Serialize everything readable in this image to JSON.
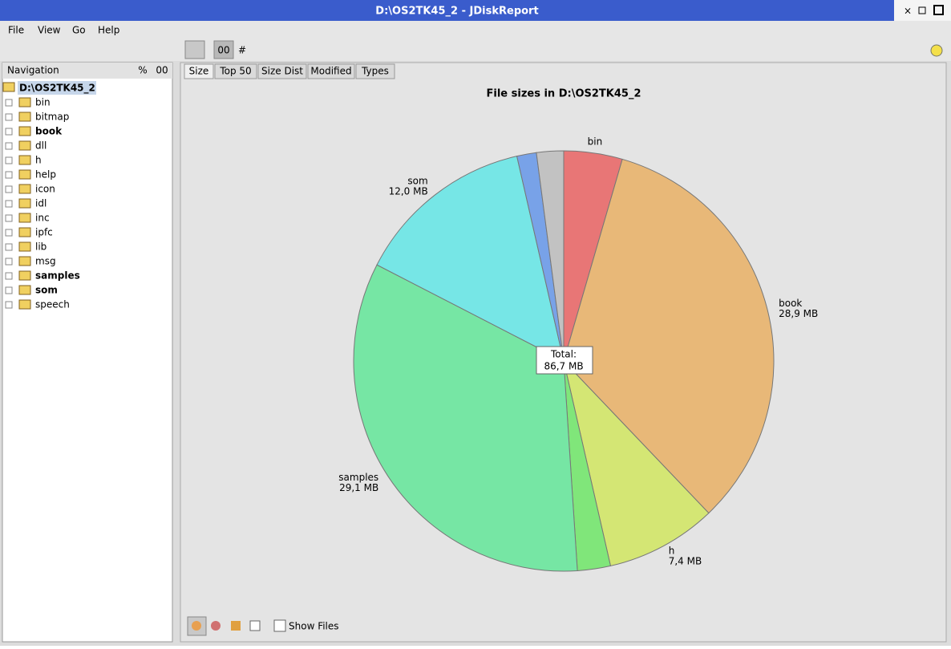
{
  "window": {
    "title": "D:\\OS2TK45_2 - JDiskReport"
  },
  "menu": [
    "File",
    "View",
    "Go",
    "Help"
  ],
  "toolbar": {
    "buttons": [
      "00",
      "#"
    ]
  },
  "navigation": {
    "title": "Navigation",
    "columns": [
      "%",
      "00"
    ],
    "root": "D:\\OS2TK45_2",
    "items": [
      {
        "label": "bin",
        "bold": false
      },
      {
        "label": "bitmap",
        "bold": false
      },
      {
        "label": "book",
        "bold": true
      },
      {
        "label": "dll",
        "bold": false
      },
      {
        "label": "h",
        "bold": false
      },
      {
        "label": "help",
        "bold": false
      },
      {
        "label": "icon",
        "bold": false
      },
      {
        "label": "idl",
        "bold": false
      },
      {
        "label": "inc",
        "bold": false
      },
      {
        "label": "ipfc",
        "bold": false
      },
      {
        "label": "lib",
        "bold": false
      },
      {
        "label": "msg",
        "bold": false
      },
      {
        "label": "samples",
        "bold": true
      },
      {
        "label": "som",
        "bold": true
      },
      {
        "label": "speech",
        "bold": false
      }
    ]
  },
  "tabs": [
    "Size",
    "Top 50",
    "Size Dist",
    "Modified",
    "Types"
  ],
  "chart_data": {
    "type": "pie",
    "title": "File sizes in D:\\OS2TK45_2",
    "categories": [
      "bin",
      "book",
      "h",
      null,
      "samples",
      "som",
      null,
      null
    ],
    "values": [
      3.9,
      28.9,
      7.4,
      2.2,
      29.1,
      12.0,
      1.3,
      1.8
    ],
    "value_labels": [
      null,
      "28,9 MB",
      "7,4 MB",
      null,
      "29,1 MB",
      "12,0 MB",
      null,
      null
    ],
    "colors": [
      "#e87676",
      "#e8b878",
      "#d4e674",
      "#80e67a",
      "#76e6a4",
      "#76e6e6",
      "#78a2e8",
      "#c2c2c2"
    ],
    "total_title": "Total:",
    "total": {
      "value": 86.7,
      "label": "86,7 MB"
    }
  },
  "footer": {
    "checkbox": "Show Files"
  }
}
